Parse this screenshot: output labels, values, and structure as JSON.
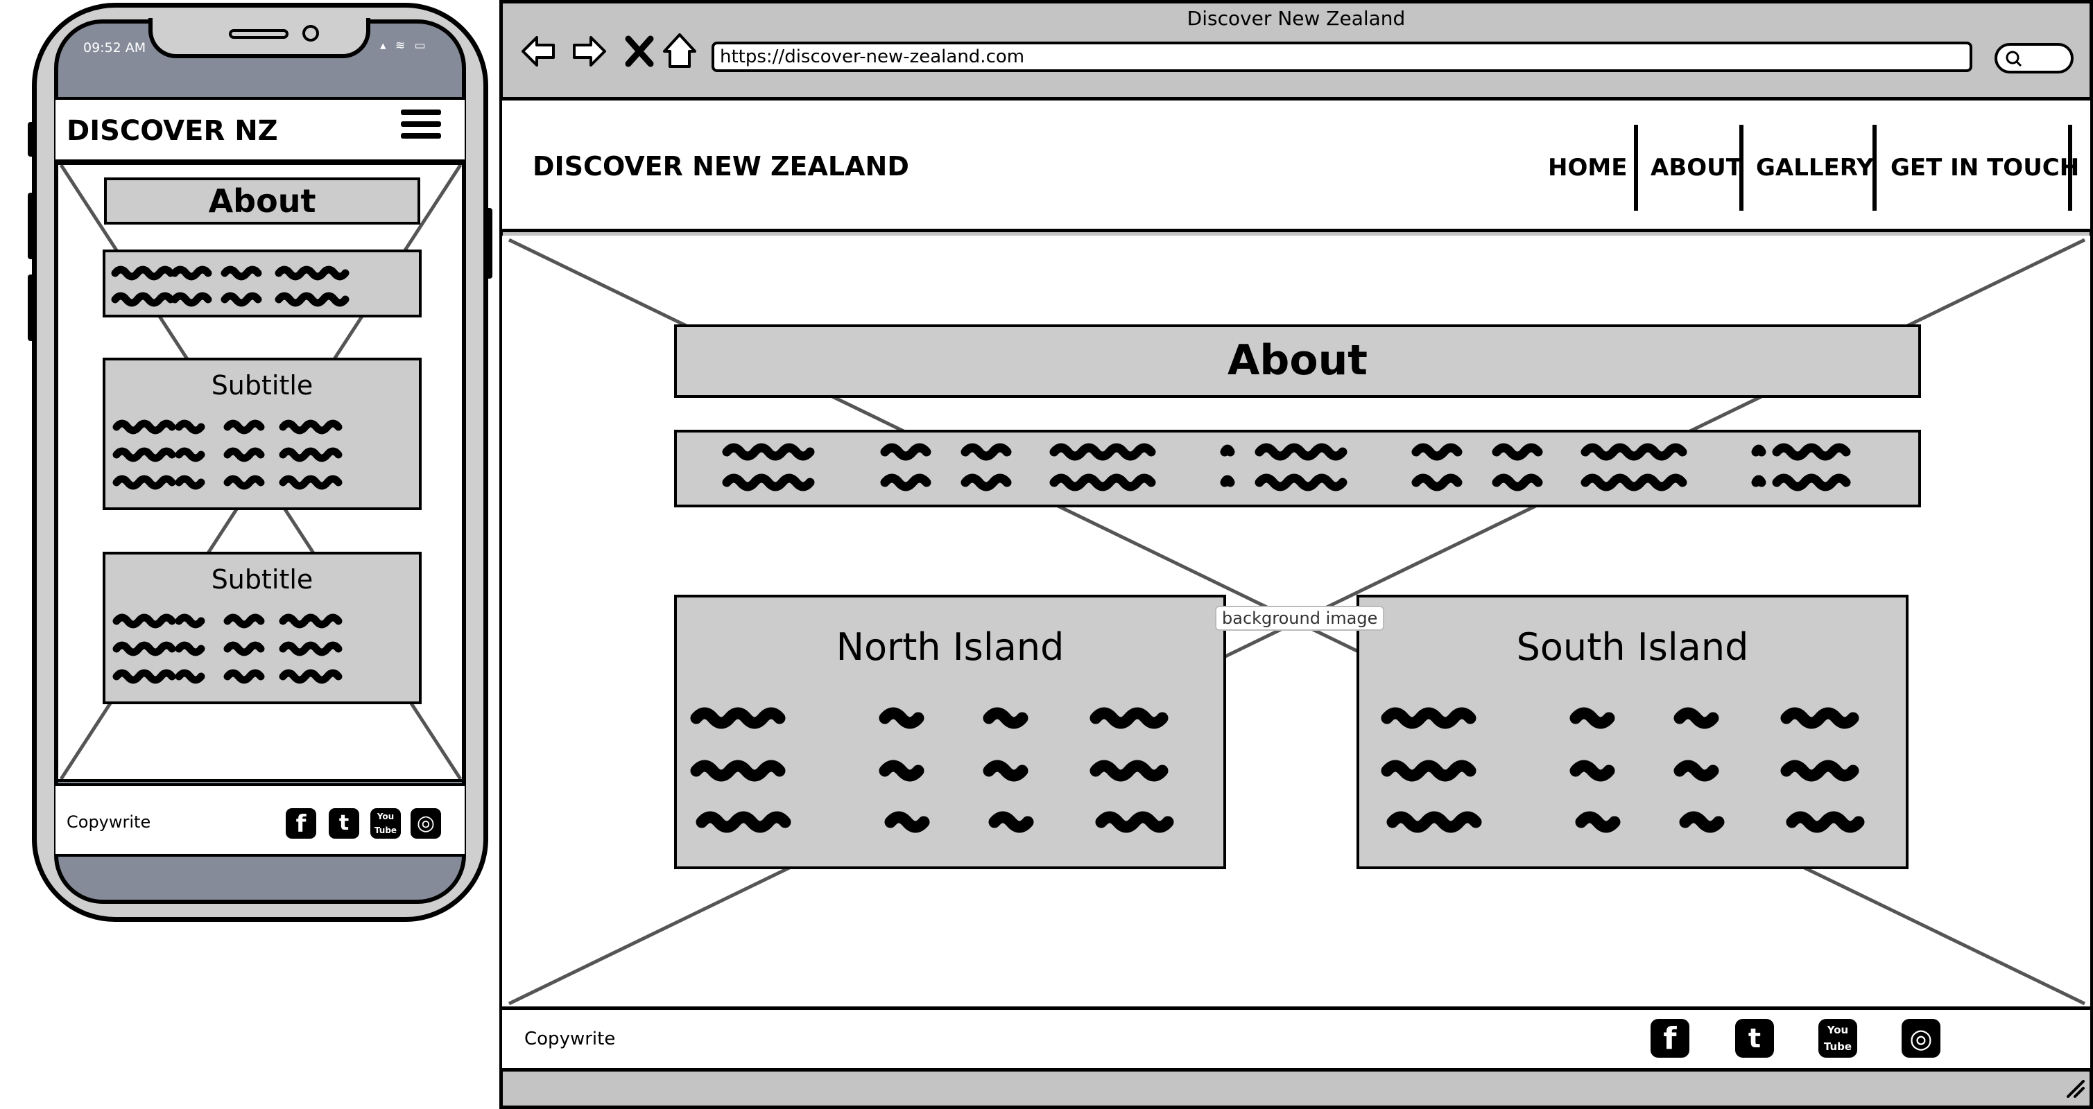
{
  "mobile": {
    "status_time": "09:52 AM",
    "status_icons": "▴ ≋ ▭",
    "brand": "DISCOVER NZ",
    "page_title": "About",
    "cards": [
      {
        "title": "Subtitle"
      },
      {
        "title": "Subtitle"
      }
    ],
    "footer_copy": "Copywrite",
    "social_icons": [
      "facebook-icon",
      "twitter-icon",
      "youtube-icon",
      "instagram-icon"
    ]
  },
  "browser": {
    "window_title": "Discover New Zealand",
    "url": "https://discover-new-zealand.com",
    "toolbar_icons": [
      "back-arrow-icon",
      "forward-arrow-icon",
      "close-icon",
      "home-icon",
      "search-icon"
    ]
  },
  "site": {
    "brand": "DISCOVER NEW ZEALAND",
    "nav": [
      "HOME",
      "ABOUT",
      "GALLERY",
      "GET IN TOUCH"
    ],
    "background_label": "background image",
    "page_title": "About",
    "islands": [
      {
        "title": "North Island"
      },
      {
        "title": "South Island"
      }
    ],
    "footer_copy": "Copywrite",
    "social_icons": [
      "facebook-icon",
      "twitter-icon",
      "youtube-icon",
      "instagram-icon"
    ],
    "social_glyphs": {
      "facebook": "f",
      "twitter": "t",
      "youtube": "You Tube",
      "instagram": "◎"
    }
  },
  "colors": {
    "frame": "#c4c4c4",
    "panel": "#cccccc",
    "phone_screen": "#858b99",
    "ink": "#000000"
  }
}
